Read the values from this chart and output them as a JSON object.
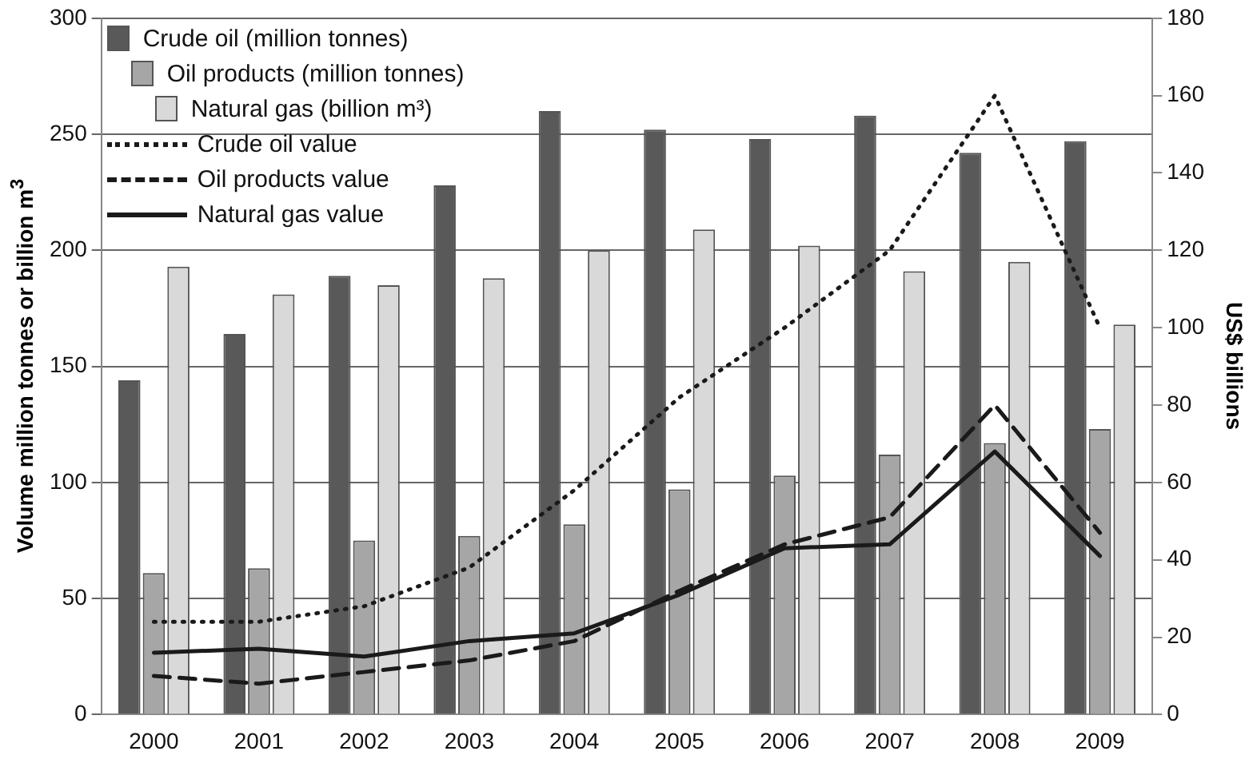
{
  "chart_data": {
    "type": "bar",
    "ylabel": "Volume million tonnes or billion m$^{3}$",
    "y2label": "US$ billions",
    "categories": [
      "2000",
      "2001",
      "2002",
      "2003",
      "2004",
      "2005",
      "2006",
      "2007",
      "2008",
      "2009"
    ],
    "series": [
      {
        "name": "Crude oil (million tonnes)",
        "color": "#595959",
        "values": [
          144,
          164,
          189,
          228,
          260,
          252,
          248,
          258,
          242,
          247
        ]
      },
      {
        "name": "Oil products (million tonnes)",
        "color": "#a6a6a6",
        "values": [
          61,
          63,
          75,
          77,
          82,
          97,
          103,
          112,
          117,
          123
        ]
      },
      {
        "name": "Natural gas (billion m³)",
        "color": "#d9d9d9",
        "values": [
          193,
          181,
          185,
          188,
          200,
          209,
          202,
          191,
          195,
          168
        ]
      },
      {
        "name": "Crude oil value",
        "type": "line",
        "axis": "y2",
        "line_style": "dotted",
        "color": "#1a1a1a",
        "values": [
          24,
          24,
          28,
          38,
          58,
          82,
          100,
          120,
          160,
          100
        ]
      },
      {
        "name": "Oil products value",
        "type": "line",
        "axis": "y2",
        "line_style": "dashed",
        "color": "#1a1a1a",
        "values": [
          10,
          8,
          11,
          14,
          19,
          32,
          44,
          51,
          80,
          47
        ]
      },
      {
        "name": "Natural gas value",
        "type": "line",
        "axis": "y2",
        "line_style": "solid",
        "color": "#1a1a1a",
        "values": [
          16,
          17,
          15,
          19,
          21,
          31,
          43,
          44,
          68,
          41
        ]
      }
    ],
    "ylim": [
      0,
      300
    ],
    "yticks": [
      0,
      50,
      100,
      150,
      200,
      250,
      300
    ],
    "y2lim": [
      0,
      180
    ],
    "y2ticks": [
      0,
      20,
      40,
      60,
      80,
      100,
      120,
      140,
      160,
      180
    ],
    "grid": "y",
    "legend": "top left",
    "marker": "none"
  }
}
